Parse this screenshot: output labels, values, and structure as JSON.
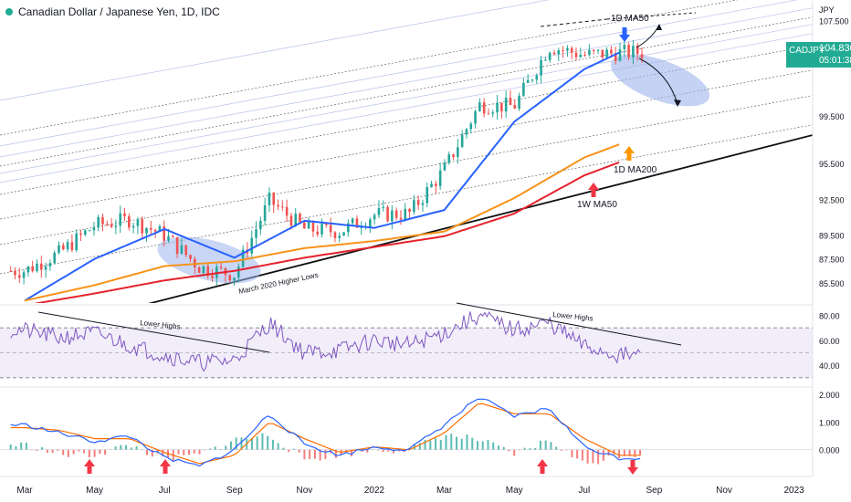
{
  "header": {
    "title": "Canadian Dollar / Japanese Yen, 1D, IDC",
    "status_color": "#22ab94"
  },
  "price_badge": {
    "symbol": "CADJPY",
    "price": "104.830",
    "countdown": "05:01:38",
    "color": "#22ab94"
  },
  "axis_unit": "JPY",
  "price_axis_ticks": [
    "107.500",
    "99.500",
    "95.500",
    "92.500",
    "89.500",
    "87.500",
    "85.500"
  ],
  "rsi_axis_ticks": [
    "80.00",
    "60.00",
    "40.00"
  ],
  "macd_axis_ticks": [
    "2.000",
    "1.000",
    "0.000"
  ],
  "time_axis_ticks": [
    "Mar",
    "May",
    "Jul",
    "Sep",
    "Nov",
    "2022",
    "Mar",
    "May",
    "Jul",
    "Sep",
    "Nov",
    "2023"
  ],
  "annotations": {
    "ma50_1d": "1D MA50",
    "ma200_1d": "1D MA200",
    "ma50_1w": "1W MA50",
    "higher_lows": "March 2020 Higher Lows",
    "lower_highs_1": "Lower Highs",
    "lower_highs_2": "Lower Highs"
  },
  "colors": {
    "ma50_1d": "#2962ff",
    "ma200_1d": "#f7931a",
    "ma50_1w": "#e5222d",
    "up_candle": "#26a69a",
    "down_candle": "#ef5350",
    "rsi_line": "#7e57c2",
    "macd_line": "#2962ff",
    "signal_line": "#ff6d00",
    "arrow_red": "#f23645",
    "arrow_blue": "#2962ff",
    "arrow_orange": "#ff9800",
    "ellipse": "#9fb4ec"
  },
  "chart_data": [
    {
      "type": "candlestick",
      "title": "Canadian Dollar / Japanese Yen, 1D, IDC",
      "ylabel": "JPY",
      "ylim": [
        83.8,
        108.6
      ],
      "x": [
        "2021-03",
        "2021-04",
        "2021-05",
        "2021-06",
        "2021-07",
        "2021-08",
        "2021-09",
        "2021-10",
        "2021-11",
        "2021-12",
        "2022-01",
        "2022-02",
        "2022-03",
        "2022-04",
        "2022-05",
        "2022-06",
        "2022-07",
        "2022-08"
      ],
      "close": [
        86.5,
        88.0,
        90.3,
        90.8,
        89.5,
        86.8,
        86.2,
        92.4,
        90.0,
        89.8,
        91.2,
        91.3,
        95.0,
        100.4,
        100.3,
        105.3,
        104.6,
        104.8
      ],
      "indicators": [
        {
          "name": "1D MA50",
          "x": [
            "2021-03",
            "2021-05",
            "2021-07",
            "2021-09",
            "2021-11",
            "2022-01",
            "2022-03",
            "2022-05",
            "2022-07",
            "2022-08"
          ],
          "values": [
            84.0,
            87.5,
            90.0,
            87.6,
            90.7,
            90.1,
            91.6,
            99.0,
            103.4,
            104.8
          ]
        },
        {
          "name": "1D MA200",
          "x": [
            "2021-03",
            "2021-05",
            "2021-07",
            "2021-09",
            "2021-11",
            "2022-01",
            "2022-03",
            "2022-05",
            "2022-07",
            "2022-08"
          ],
          "values": [
            84.0,
            85.3,
            86.9,
            87.3,
            88.4,
            89.0,
            89.8,
            92.6,
            96.0,
            97.1
          ]
        },
        {
          "name": "1W MA50",
          "x": [
            "2021-03",
            "2021-05",
            "2021-07",
            "2021-09",
            "2021-11",
            "2022-01",
            "2022-03",
            "2022-05",
            "2022-07",
            "2022-08"
          ],
          "values": [
            83.6,
            84.6,
            85.7,
            86.5,
            87.6,
            88.5,
            89.4,
            91.3,
            94.5,
            95.6
          ]
        }
      ]
    },
    {
      "type": "line",
      "title": "RSI",
      "ylim": [
        24,
        87
      ],
      "x": [
        "2021-03",
        "2021-04",
        "2021-05",
        "2021-06",
        "2021-07",
        "2021-08",
        "2021-09",
        "2021-10",
        "2021-11",
        "2021-12",
        "2022-01",
        "2022-02",
        "2022-03",
        "2022-04",
        "2022-05",
        "2022-06",
        "2022-07",
        "2022-08"
      ],
      "series": [
        {
          "values": [
            68,
            62,
            66,
            56,
            48,
            42,
            44,
            74,
            50,
            52,
            60,
            56,
            66,
            80,
            68,
            74,
            55,
            48
          ]
        }
      ]
    },
    {
      "type": "line",
      "title": "MACD",
      "ylim": [
        -0.9,
        2.2
      ],
      "x": [
        "2021-03",
        "2021-04",
        "2021-05",
        "2021-06",
        "2021-07",
        "2021-08",
        "2021-09",
        "2021-10",
        "2021-11",
        "2021-12",
        "2022-01",
        "2022-02",
        "2022-03",
        "2022-04",
        "2022-05",
        "2022-06",
        "2022-07",
        "2022-08"
      ],
      "series": [
        {
          "values": [
            0.9,
            0.6,
            0.3,
            0.5,
            -0.3,
            -0.6,
            0.0,
            1.3,
            0.2,
            -0.2,
            0.1,
            0.0,
            0.9,
            1.9,
            1.2,
            1.5,
            0.1,
            -0.3
          ]
        },
        {
          "values": [
            0.8,
            0.7,
            0.4,
            0.4,
            -0.1,
            -0.5,
            -0.2,
            1.0,
            0.4,
            -0.1,
            0.1,
            0.0,
            0.6,
            1.7,
            1.3,
            1.3,
            0.4,
            -0.2
          ]
        }
      ]
    }
  ]
}
